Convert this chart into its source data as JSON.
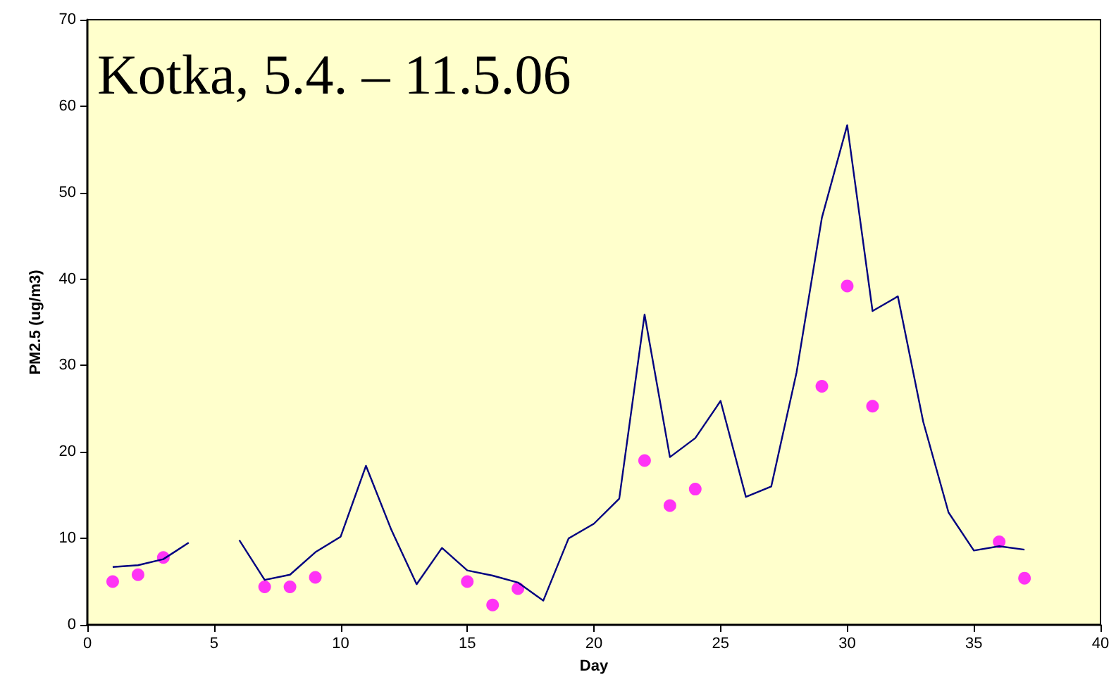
{
  "chart_data": {
    "type": "line",
    "title": "Kotka, 5.4. – 11.5.06",
    "xlabel": "Day",
    "ylabel": "PM2.5 (ug/m3)",
    "xlim": [
      0,
      40
    ],
    "xticks": [
      0,
      5,
      10,
      15,
      20,
      25,
      30,
      35,
      40
    ],
    "ylim": [
      0,
      70
    ],
    "yticks": [
      0,
      10,
      20,
      30,
      40,
      50,
      60,
      70
    ],
    "grid": false,
    "series": [
      {
        "color": "#000080",
        "marker": "none",
        "x": [
          1,
          2,
          3,
          4,
          5,
          6,
          7,
          8,
          9,
          10,
          11,
          12,
          13,
          14,
          15,
          16,
          17,
          18,
          19,
          20,
          21,
          22,
          23,
          24,
          25,
          26,
          27,
          28,
          29,
          30,
          31,
          32,
          33,
          34,
          35,
          36,
          37
        ],
        "values": [
          6.7,
          6.9,
          7.6,
          9.5,
          null,
          9.8,
          5.2,
          5.8,
          8.4,
          10.2,
          18.4,
          11,
          4.7,
          8.9,
          6.3,
          5.7,
          4.9,
          2.8,
          10,
          11.7,
          14.6,
          35.9,
          19.4,
          21.6,
          25.9,
          14.8,
          16,
          29.2,
          47.1,
          57.8,
          36.3,
          38,
          23.5,
          13,
          8.6,
          9.1,
          8.7
        ]
      },
      {
        "type": "scatter",
        "color": "#ff00ff",
        "marker": "circle",
        "x": [
          1,
          2,
          3,
          7,
          8,
          9,
          15,
          16,
          17,
          22,
          23,
          24,
          29,
          30,
          31,
          36,
          37
        ],
        "values": [
          5,
          5.8,
          7.8,
          4.4,
          4.4,
          5.5,
          5,
          2.3,
          4.2,
          19,
          13.8,
          15.7,
          27.6,
          39.2,
          25.3,
          9.6,
          5.4
        ]
      }
    ]
  }
}
